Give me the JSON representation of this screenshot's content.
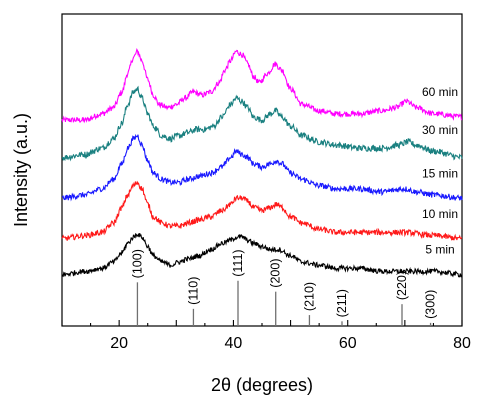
{
  "chart_data": {
    "type": "line",
    "title": "",
    "xlabel": "2θ (degrees)",
    "ylabel": "Intensity (a.u.)",
    "xlim": [
      10,
      80
    ],
    "x_ticks": [
      20,
      40,
      60,
      80
    ],
    "y_ticks_labeled": false,
    "grid": false,
    "legend": "none; series labels printed at the right end of each trace",
    "series": [
      {
        "name": "60 min",
        "color": "#ff00ff",
        "baseline": 0.66,
        "noise": 0.009,
        "points": [
          [
            10,
            0.0
          ],
          [
            14,
            0.0
          ],
          [
            17,
            0.02
          ],
          [
            19,
            0.04
          ],
          [
            20.5,
            0.09
          ],
          [
            21.5,
            0.15
          ],
          [
            22.5,
            0.2
          ],
          [
            23.2,
            0.22
          ],
          [
            24,
            0.19
          ],
          [
            25,
            0.13
          ],
          [
            26,
            0.08
          ],
          [
            27,
            0.05
          ],
          [
            28.5,
            0.04
          ],
          [
            30,
            0.05
          ],
          [
            31.5,
            0.07
          ],
          [
            33,
            0.09
          ],
          [
            34.5,
            0.08
          ],
          [
            36,
            0.09
          ],
          [
            37.5,
            0.12
          ],
          [
            38.5,
            0.16
          ],
          [
            39.5,
            0.19
          ],
          [
            40.5,
            0.22
          ],
          [
            41.5,
            0.21
          ],
          [
            42.5,
            0.18
          ],
          [
            43.5,
            0.14
          ],
          [
            44.5,
            0.12
          ],
          [
            46,
            0.15
          ],
          [
            47.3,
            0.18
          ],
          [
            48.5,
            0.16
          ],
          [
            50,
            0.1
          ],
          [
            52,
            0.05
          ],
          [
            55,
            0.03
          ],
          [
            58,
            0.02
          ],
          [
            62,
            0.02
          ],
          [
            66,
            0.03
          ],
          [
            68.5,
            0.04
          ],
          [
            70.3,
            0.06
          ],
          [
            72,
            0.04
          ],
          [
            75,
            0.02
          ],
          [
            80,
            0.01
          ]
        ]
      },
      {
        "name": "30 min",
        "color": "#1a8080",
        "baseline": 0.54,
        "noise": 0.01,
        "points": [
          [
            10,
            0.0
          ],
          [
            14,
            0.01
          ],
          [
            17,
            0.03
          ],
          [
            19,
            0.06
          ],
          [
            20.5,
            0.11
          ],
          [
            21.5,
            0.17
          ],
          [
            22.5,
            0.21
          ],
          [
            23.2,
            0.22
          ],
          [
            24,
            0.19
          ],
          [
            25,
            0.14
          ],
          [
            26,
            0.1
          ],
          [
            27.5,
            0.07
          ],
          [
            29,
            0.06
          ],
          [
            30.5,
            0.07
          ],
          [
            32,
            0.08
          ],
          [
            33.5,
            0.09
          ],
          [
            35,
            0.09
          ],
          [
            36.5,
            0.1
          ],
          [
            38,
            0.13
          ],
          [
            39.5,
            0.17
          ],
          [
            40.5,
            0.19
          ],
          [
            41.5,
            0.18
          ],
          [
            42.5,
            0.16
          ],
          [
            43.5,
            0.13
          ],
          [
            45,
            0.12
          ],
          [
            46.5,
            0.14
          ],
          [
            47.3,
            0.15
          ],
          [
            48.5,
            0.13
          ],
          [
            50,
            0.1
          ],
          [
            52,
            0.07
          ],
          [
            55,
            0.05
          ],
          [
            58,
            0.04
          ],
          [
            62,
            0.03
          ],
          [
            66,
            0.03
          ],
          [
            69,
            0.04
          ],
          [
            70.5,
            0.05
          ],
          [
            72,
            0.04
          ],
          [
            75,
            0.02
          ],
          [
            80,
            0.0
          ]
        ]
      },
      {
        "name": "15 min",
        "color": "#1a1aff",
        "baseline": 0.41,
        "noise": 0.009,
        "points": [
          [
            10,
            0.0
          ],
          [
            14,
            0.01
          ],
          [
            17,
            0.03
          ],
          [
            19,
            0.06
          ],
          [
            20.5,
            0.11
          ],
          [
            21.5,
            0.16
          ],
          [
            22.5,
            0.19
          ],
          [
            23.2,
            0.2
          ],
          [
            24,
            0.17
          ],
          [
            25,
            0.12
          ],
          [
            26,
            0.08
          ],
          [
            27.5,
            0.06
          ],
          [
            29,
            0.05
          ],
          [
            30.5,
            0.05
          ],
          [
            32,
            0.06
          ],
          [
            34,
            0.07
          ],
          [
            36,
            0.08
          ],
          [
            38,
            0.1
          ],
          [
            39.5,
            0.13
          ],
          [
            40.5,
            0.15
          ],
          [
            41.5,
            0.14
          ],
          [
            42.5,
            0.13
          ],
          [
            43.5,
            0.11
          ],
          [
            45,
            0.1
          ],
          [
            46.5,
            0.11
          ],
          [
            47.5,
            0.12
          ],
          [
            48.5,
            0.11
          ],
          [
            50,
            0.08
          ],
          [
            52,
            0.06
          ],
          [
            55,
            0.04
          ],
          [
            58,
            0.03
          ],
          [
            62,
            0.03
          ],
          [
            66,
            0.02
          ],
          [
            70,
            0.03
          ],
          [
            72,
            0.02
          ],
          [
            75,
            0.01
          ],
          [
            80,
            0.0
          ]
        ]
      },
      {
        "name": "10 min",
        "color": "#ff1a1a",
        "baseline": 0.28,
        "noise": 0.009,
        "points": [
          [
            10,
            0.0
          ],
          [
            14,
            0.01
          ],
          [
            17,
            0.02
          ],
          [
            19,
            0.05
          ],
          [
            20.5,
            0.1
          ],
          [
            21.5,
            0.14
          ],
          [
            22.5,
            0.17
          ],
          [
            23.2,
            0.18
          ],
          [
            24,
            0.16
          ],
          [
            25,
            0.11
          ],
          [
            26,
            0.07
          ],
          [
            27.5,
            0.05
          ],
          [
            29,
            0.04
          ],
          [
            30.5,
            0.04
          ],
          [
            32,
            0.05
          ],
          [
            34,
            0.06
          ],
          [
            36,
            0.07
          ],
          [
            38,
            0.09
          ],
          [
            39.5,
            0.11
          ],
          [
            40.5,
            0.13
          ],
          [
            41.5,
            0.13
          ],
          [
            42.5,
            0.12
          ],
          [
            43.5,
            0.1
          ],
          [
            45,
            0.09
          ],
          [
            46.5,
            0.1
          ],
          [
            47.5,
            0.11
          ],
          [
            48.5,
            0.1
          ],
          [
            50,
            0.07
          ],
          [
            52,
            0.05
          ],
          [
            55,
            0.03
          ],
          [
            58,
            0.02
          ],
          [
            62,
            0.02
          ],
          [
            66,
            0.02
          ],
          [
            70,
            0.02
          ],
          [
            75,
            0.01
          ],
          [
            80,
            0.0
          ]
        ]
      },
      {
        "name": "5 min",
        "color": "#000000",
        "baseline": 0.165,
        "noise": 0.008,
        "points": [
          [
            10,
            0.0
          ],
          [
            14,
            0.01
          ],
          [
            17,
            0.02
          ],
          [
            19,
            0.04
          ],
          [
            20.5,
            0.07
          ],
          [
            21.5,
            0.1
          ],
          [
            22.5,
            0.12
          ],
          [
            23.2,
            0.13
          ],
          [
            24,
            0.12
          ],
          [
            25,
            0.09
          ],
          [
            26,
            0.06
          ],
          [
            27.5,
            0.04
          ],
          [
            29,
            0.03
          ],
          [
            30.5,
            0.04
          ],
          [
            32,
            0.05
          ],
          [
            34,
            0.06
          ],
          [
            36,
            0.08
          ],
          [
            38,
            0.1
          ],
          [
            39.5,
            0.11
          ],
          [
            40.5,
            0.12
          ],
          [
            41.5,
            0.12
          ],
          [
            42.5,
            0.11
          ],
          [
            43.5,
            0.1
          ],
          [
            45,
            0.09
          ],
          [
            46.5,
            0.08
          ],
          [
            48,
            0.08
          ],
          [
            50,
            0.06
          ],
          [
            52,
            0.04
          ],
          [
            55,
            0.03
          ],
          [
            58,
            0.02
          ],
          [
            62,
            0.02
          ],
          [
            66,
            0.01
          ],
          [
            70,
            0.01
          ],
          [
            75,
            0.01
          ],
          [
            80,
            0.0
          ]
        ]
      }
    ],
    "reference_lines": [
      {
        "label": "(100)",
        "x": 23.2,
        "height": 0.14
      },
      {
        "label": "(110)",
        "x": 33.0,
        "height": 0.055
      },
      {
        "label": "(111)",
        "x": 40.8,
        "height": 0.145
      },
      {
        "label": "(200)",
        "x": 47.4,
        "height": 0.11
      },
      {
        "label": "(210)",
        "x": 53.3,
        "height": 0.035
      },
      {
        "label": "(211)",
        "x": 59.0,
        "height": 0.015
      },
      {
        "label": "(220)",
        "x": 69.5,
        "height": 0.07
      },
      {
        "label": "(300)",
        "x": 74.5,
        "height": 0.01
      }
    ]
  }
}
